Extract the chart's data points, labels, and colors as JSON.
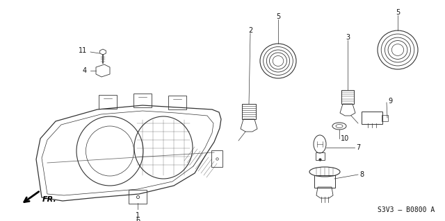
{
  "background_color": "#ffffff",
  "diagram_code": "S3V3 — B0800 A",
  "fr_label": "FR.",
  "fig_width": 6.4,
  "fig_height": 3.19,
  "dpi": 100,
  "text_color": "#111111",
  "line_color": "#333333",
  "label_fontsize": 7,
  "code_fontsize": 7
}
